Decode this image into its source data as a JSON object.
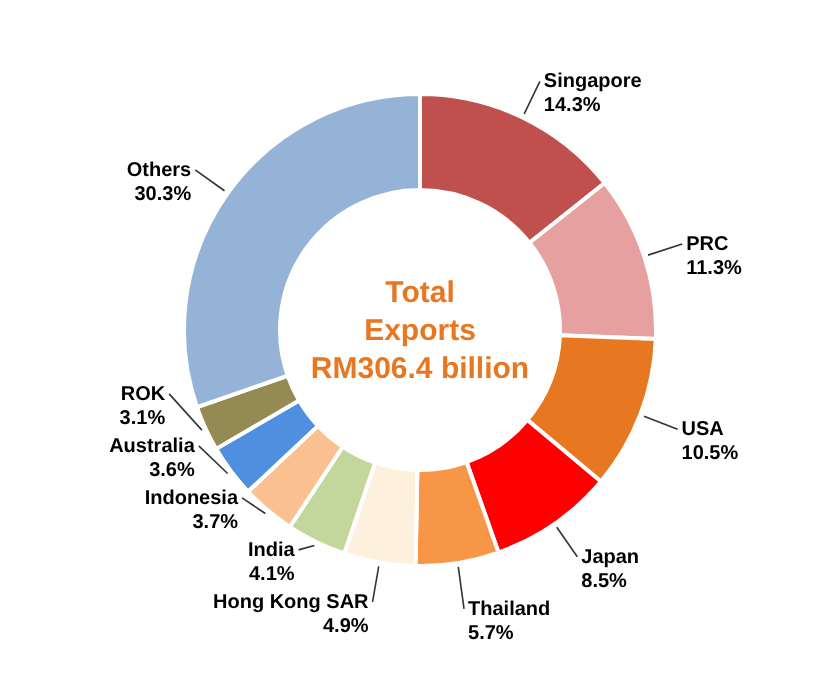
{
  "chart_data": {
    "type": "donut",
    "title": "Total\nExports\nRM306.4 billion",
    "categories": [
      "Singapore",
      "PRC",
      "USA",
      "Japan",
      "Thailand",
      "Hong Kong SAR",
      "India",
      "Indonesia",
      "Australia",
      "ROK",
      "Others"
    ],
    "values": [
      14.3,
      11.3,
      10.5,
      8.5,
      5.7,
      4.9,
      4.1,
      3.7,
      3.6,
      3.1,
      30.3
    ],
    "value_labels": [
      "14.3%",
      "11.3%",
      "10.5%",
      "8.5%",
      "5.7%",
      "4.9%",
      "4.1%",
      "3.7%",
      "3.6%",
      "3.1%",
      "30.3%"
    ],
    "colors": [
      "#c0504d",
      "#e6a0a0",
      "#e87722",
      "#ff0000",
      "#f79646",
      "#fdf0dc",
      "#c3d69b",
      "#fac090",
      "#4f8fe0",
      "#948a54",
      "#95b3d7"
    ]
  }
}
